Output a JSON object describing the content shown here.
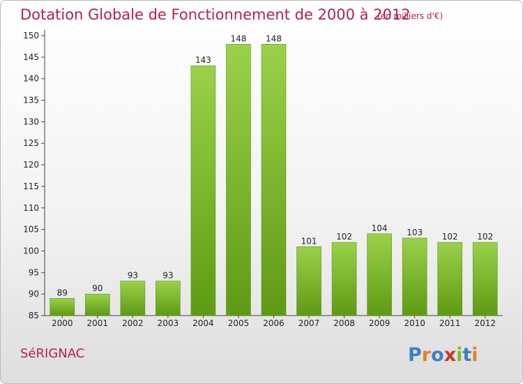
{
  "header": {
    "title": "Dotation Globale de Fonctionnement de 2000 à 2012",
    "subtitle": "(en milliers d'€)"
  },
  "footer": {
    "commune": "SéRIGNAC",
    "brand": "Proxiti"
  },
  "colors": {
    "accent": "#b0224d",
    "bar_light": "#9bd14a",
    "bar_dark": "#5e9a14"
  },
  "chart_data": {
    "type": "bar",
    "title": "Dotation Globale de Fonctionnement de 2000 à 2012",
    "subtitle": "(en milliers d'€)",
    "xlabel": "",
    "ylabel": "",
    "categories": [
      "2000",
      "2001",
      "2002",
      "2003",
      "2004",
      "2005",
      "2006",
      "2007",
      "2008",
      "2009",
      "2010",
      "2011",
      "2012"
    ],
    "values": [
      89,
      90,
      93,
      93,
      143,
      148,
      148,
      101,
      102,
      104,
      103,
      102,
      102
    ],
    "data_labels": [
      "89",
      "90",
      "93",
      "93",
      "143",
      "148",
      "148",
      "101",
      "102",
      "104",
      "103",
      "102",
      "102"
    ],
    "ylim": [
      85,
      150
    ],
    "yticks": [
      85,
      90,
      95,
      100,
      105,
      110,
      115,
      120,
      125,
      130,
      135,
      140,
      145,
      150
    ],
    "grid": false,
    "legend": "none"
  }
}
